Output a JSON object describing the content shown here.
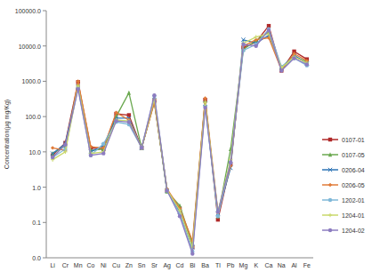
{
  "chart_data": {
    "type": "line",
    "ylabel": "Concentration(μg mg/Kg)",
    "log": "y",
    "grid": false,
    "legend": "right",
    "categories": [
      "Li",
      "Cr",
      "Mn",
      "Co",
      "Ni",
      "Cu",
      "Zn",
      "Sn",
      "Sr",
      "Ag",
      "Cd",
      "Bi",
      "Ba",
      "Tl",
      "Pb",
      "Mg",
      "K",
      "Ca",
      "Na",
      "Al",
      "Fe"
    ],
    "ylim": [
      0.01,
      100000
    ],
    "yticks": [
      {
        "value": 0.01,
        "label": "0.0"
      },
      {
        "value": 0.1,
        "label": "0.1"
      },
      {
        "value": 1,
        "label": "1.0"
      },
      {
        "value": 10,
        "label": "10.0"
      },
      {
        "value": 100,
        "label": "100.0"
      },
      {
        "value": 1000,
        "label": "1000.0"
      },
      {
        "value": 10000,
        "label": "10000.0"
      },
      {
        "value": 100000,
        "label": "100000.0"
      }
    ],
    "series": [
      {
        "name": "0107-01",
        "color": "#b02a2a",
        "marker": "square",
        "values": [
          8,
          18,
          950,
          13,
          12,
          120,
          110,
          13,
          280,
          0.8,
          0.25,
          0.02,
          300,
          0.12,
          4.5,
          9000,
          13000,
          37000,
          2000,
          7000,
          4200
        ]
      },
      {
        "name": "0107-05",
        "color": "#6aa84f",
        "marker": "triangle",
        "values": [
          9,
          15,
          800,
          11,
          12,
          100,
          470,
          13,
          260,
          0.75,
          0.3,
          0.025,
          280,
          0.15,
          12,
          8000,
          14000,
          25000,
          2200,
          5000,
          3600
        ]
      },
      {
        "name": "0206-04",
        "color": "#2e75b6",
        "marker": "x",
        "values": [
          9,
          17,
          700,
          10,
          15,
          90,
          90,
          13,
          300,
          0.8,
          0.2,
          0.02,
          230,
          0.18,
          3.5,
          15000,
          12000,
          20000,
          2500,
          5500,
          3200
        ]
      },
      {
        "name": "0206-05",
        "color": "#e07b39",
        "marker": "diamond",
        "values": [
          13,
          11,
          1000,
          14,
          13,
          130,
          80,
          13,
          250,
          0.9,
          0.25,
          0.03,
          330,
          0.2,
          4,
          10000,
          15000,
          17000,
          2100,
          6000,
          3800
        ]
      },
      {
        "name": "1202-01",
        "color": "#7fb8d8",
        "marker": "circle",
        "values": [
          7,
          12,
          650,
          8,
          17,
          70,
          60,
          13,
          380,
          0.8,
          0.18,
          0.015,
          200,
          0.15,
          5,
          7500,
          11000,
          30000,
          2600,
          4500,
          2800
        ]
      },
      {
        "name": "1204-01",
        "color": "#c9d86b",
        "marker": "plus",
        "values": [
          6,
          10,
          750,
          9,
          10,
          80,
          75,
          13,
          320,
          0.85,
          0.22,
          0.02,
          250,
          0.2,
          6,
          12000,
          18000,
          22000,
          2400,
          5000,
          3300
        ]
      },
      {
        "name": "1204-02",
        "color": "#8c7cc0",
        "marker": "circle",
        "values": [
          7,
          16,
          600,
          8,
          9,
          75,
          70,
          13,
          400,
          0.8,
          0.15,
          0.013,
          180,
          0.2,
          5,
          11000,
          10000,
          28000,
          2000,
          4500,
          3000
        ]
      }
    ]
  }
}
